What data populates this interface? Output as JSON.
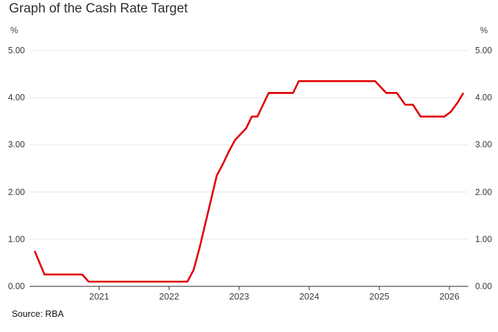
{
  "title": "Graph of the Cash Rate Target",
  "source": "Source: RBA",
  "axis_unit": "%",
  "colors": {
    "line": "#e00000",
    "grid": "#e7e7e7",
    "axis": "#4c4c4c",
    "text": "#3b3b3b",
    "title": "#2f2f2f"
  },
  "chart_data": {
    "type": "line",
    "title": "Graph of the Cash Rate Target",
    "xlabel": "",
    "ylabel": "%",
    "ylim": [
      0,
      5
    ],
    "xlim": [
      2020.01,
      2026.27
    ],
    "grid": "horizontal",
    "legend": "none",
    "y_ticks": {
      "values": [
        0,
        1,
        2,
        3,
        4,
        5
      ],
      "labels": [
        "0.00",
        "1.00",
        "2.00",
        "3.00",
        "4.00",
        "5.00"
      ]
    },
    "x_ticks": {
      "values": [
        2021,
        2022,
        2023,
        2024,
        2025,
        2026
      ],
      "labels": [
        "2021",
        "2022",
        "2023",
        "2024",
        "2025",
        "2026"
      ]
    },
    "series": [
      {
        "name": "Cash Rate Target",
        "color": "#e00000",
        "points": [
          [
            2020.08,
            0.75
          ],
          [
            2020.22,
            0.25
          ],
          [
            2020.76,
            0.25
          ],
          [
            2020.85,
            0.1
          ],
          [
            2022.26,
            0.1
          ],
          [
            2022.35,
            0.35
          ],
          [
            2022.44,
            0.85
          ],
          [
            2022.52,
            1.35
          ],
          [
            2022.6,
            1.85
          ],
          [
            2022.68,
            2.35
          ],
          [
            2022.77,
            2.6
          ],
          [
            2022.85,
            2.85
          ],
          [
            2022.94,
            3.1
          ],
          [
            2023.1,
            3.35
          ],
          [
            2023.18,
            3.6
          ],
          [
            2023.26,
            3.6
          ],
          [
            2023.34,
            3.85
          ],
          [
            2023.42,
            4.1
          ],
          [
            2023.77,
            4.1
          ],
          [
            2023.85,
            4.35
          ],
          [
            2024.94,
            4.35
          ],
          [
            2025.1,
            4.1
          ],
          [
            2025.25,
            4.1
          ],
          [
            2025.37,
            3.85
          ],
          [
            2025.48,
            3.85
          ],
          [
            2025.59,
            3.6
          ],
          [
            2025.93,
            3.6
          ],
          [
            2026.02,
            3.7
          ],
          [
            2026.12,
            3.9
          ],
          [
            2026.2,
            4.1
          ]
        ]
      }
    ]
  }
}
